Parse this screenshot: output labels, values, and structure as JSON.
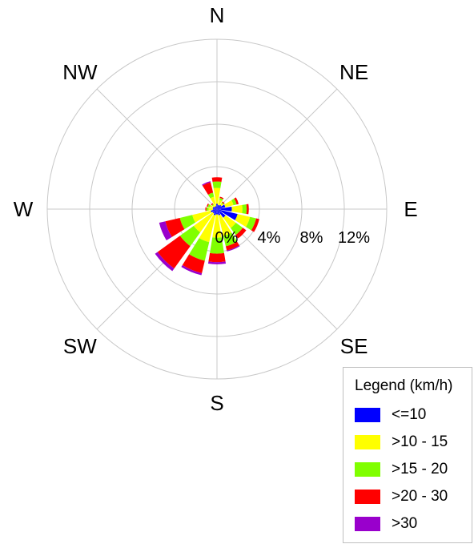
{
  "chart_data": {
    "type": "wind-rose",
    "directions": [
      "N",
      "NNE",
      "NE",
      "ENE",
      "E",
      "ESE",
      "SE",
      "SSE",
      "S",
      "SSW",
      "SW",
      "WSW",
      "W",
      "WNW",
      "NW",
      "NNW"
    ],
    "compass_labels": [
      "N",
      "NE",
      "E",
      "SE",
      "S",
      "SW",
      "W",
      "NW"
    ],
    "radial_ticks": [
      "0%",
      "4%",
      "8%",
      "12%"
    ],
    "radial_max": 16,
    "legend_title": "Legend (km/h)",
    "series": [
      {
        "name": "<=10",
        "color": "#0000ff",
        "values": [
          0.5,
          0.4,
          0.5,
          0.8,
          1.4,
          2.0,
          1.0,
          0.6,
          0.5,
          0.6,
          0.5,
          0.6,
          0.4,
          0.4,
          0.3,
          0.3
        ]
      },
      {
        "name": ">10 - 15",
        "color": "#ffff00",
        "values": [
          1.5,
          0.5,
          0.2,
          0.8,
          1.0,
          1.2,
          1.2,
          2.0,
          2.2,
          2.6,
          2.2,
          1.8,
          0.4,
          0.3,
          0.2,
          0.9
        ]
      },
      {
        "name": ">15 - 20",
        "color": "#80ff00",
        "values": [
          0.6,
          0.2,
          0.1,
          0.3,
          0.4,
          0.6,
          0.8,
          1.0,
          1.5,
          1.8,
          1.6,
          1.2,
          0.2,
          0.2,
          0.1,
          0.4
        ]
      },
      {
        "name": ">20 - 30",
        "color": "#ff0000",
        "values": [
          0.4,
          0.1,
          0.1,
          0.2,
          0.2,
          0.3,
          0.4,
          0.4,
          0.8,
          1.2,
          2.6,
          1.4,
          0.1,
          0.1,
          0.1,
          1.0
        ]
      },
      {
        "name": ">30",
        "color": "#9900cc",
        "values": [
          0.0,
          0.0,
          0.0,
          0.0,
          0.0,
          0.0,
          0.0,
          0.1,
          0.2,
          0.2,
          0.3,
          0.6,
          0.0,
          0.0,
          0.0,
          0.1
        ]
      }
    ]
  }
}
